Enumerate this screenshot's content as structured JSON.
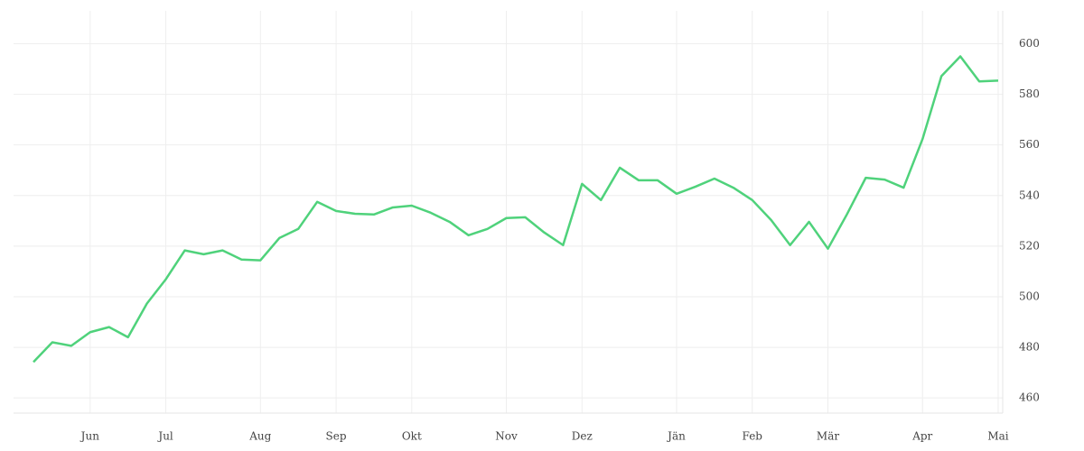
{
  "chart_data": {
    "type": "line",
    "categories": [
      null,
      null,
      null,
      "Jun",
      null,
      null,
      null,
      "Jul",
      null,
      null,
      null,
      null,
      "Aug",
      null,
      null,
      null,
      "Sep",
      null,
      null,
      null,
      "Okt",
      null,
      null,
      null,
      null,
      "Nov",
      null,
      null,
      null,
      "Dez",
      null,
      null,
      null,
      null,
      "Jän",
      null,
      null,
      null,
      "Feb",
      null,
      null,
      null,
      "Mär",
      null,
      null,
      null,
      null,
      "Apr",
      null,
      null,
      null,
      "Mai"
    ],
    "series": [
      {
        "color": "#4fd27b",
        "values": [
          474.2,
          482,
          480.6,
          486,
          488,
          484,
          497.3,
          506.9,
          518.3,
          516.8,
          518.3,
          514.7,
          514.4,
          523.2,
          526.8,
          537.5,
          533.9,
          532.8,
          532.5,
          535.3,
          536,
          533.2,
          529.6,
          524.3,
          526.8,
          531.1,
          531.4,
          525.4,
          520.4,
          544.6,
          538.2,
          551,
          546,
          546,
          540.7,
          543.5,
          546.7,
          543.1,
          538.2,
          530.3,
          520.4,
          529.6,
          519,
          532.5,
          547,
          546.3,
          543.1,
          562.3,
          587.2,
          595,
          585.1,
          585.4
        ]
      }
    ],
    "ylim": [
      454,
      613
    ],
    "yticks": [
      460,
      480,
      500,
      520,
      540,
      560,
      580,
      600
    ],
    "grid": true
  }
}
